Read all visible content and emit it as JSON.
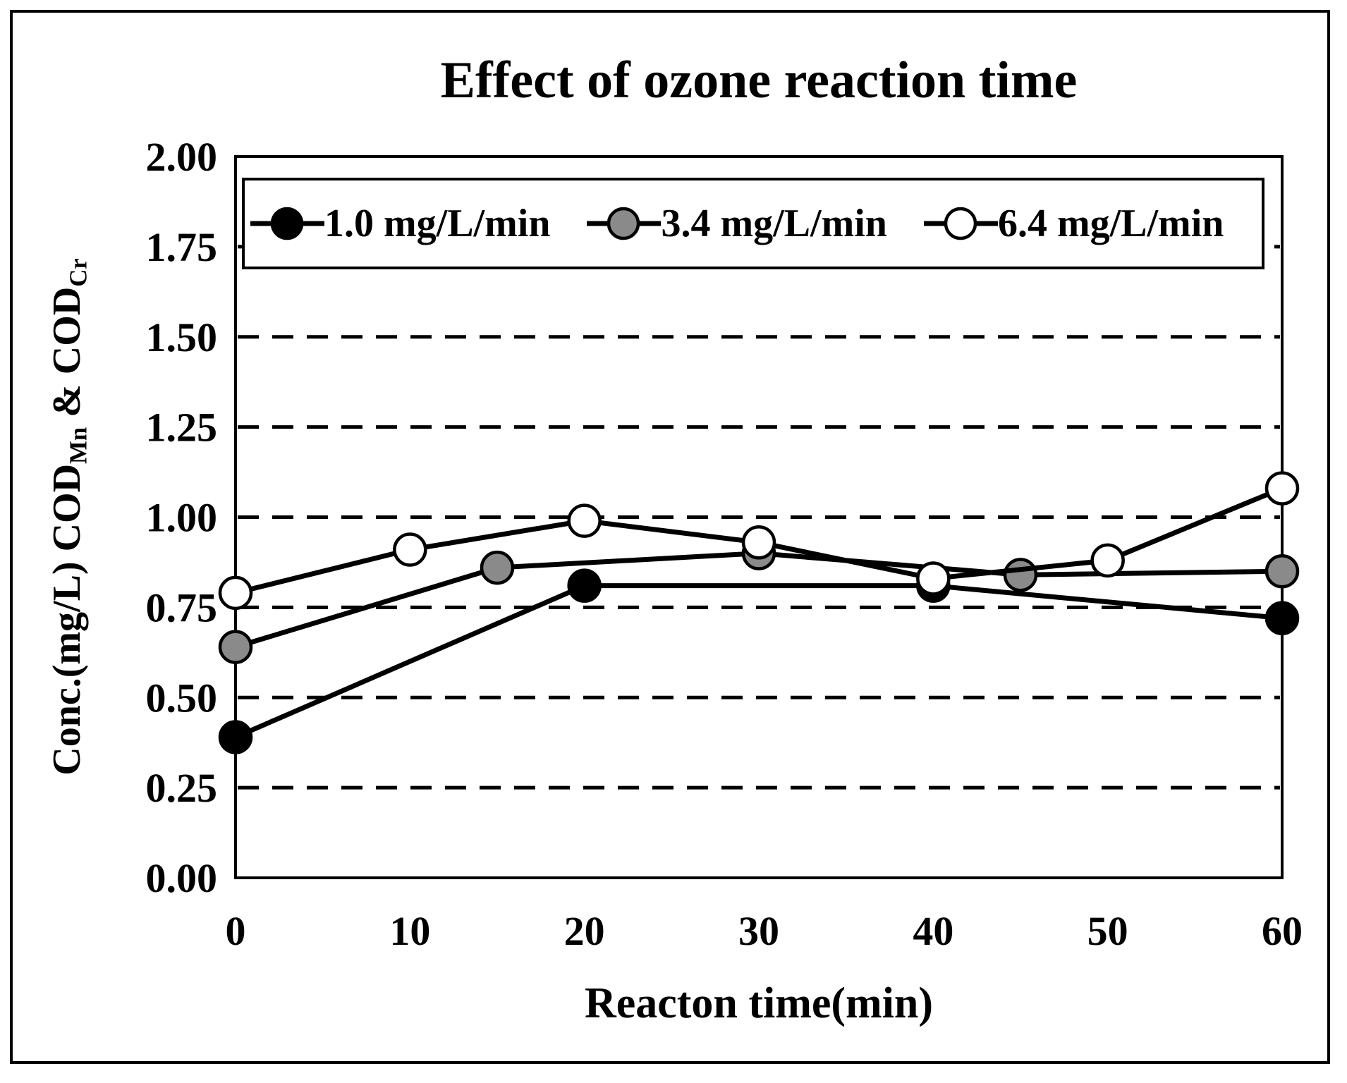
{
  "figure": {
    "title": "Effect of ozone reaction time"
  },
  "axes": {
    "xlabel": "Reacton time(min)",
    "ylabel": "Conc.(mg/L) COD_Mn & COD_Cr",
    "ylabel_parts": {
      "main1": "Conc.(mg/L) COD",
      "sub1": "Mn",
      "main2": " & COD",
      "sub2": "Cr"
    }
  },
  "colors": {
    "line": "#000000",
    "black_marker": "#000000",
    "gray_marker": "#8a8a8a",
    "white_marker": "#ffffff",
    "background": "#ffffff"
  },
  "chart_data": {
    "type": "line",
    "title": "Effect of ozone reaction time",
    "xlabel": "Reacton time(min)",
    "ylabel": "Conc.(mg/L) COD_Mn & COD_Cr",
    "xlim": [
      0,
      60
    ],
    "ylim": [
      0.0,
      2.0
    ],
    "grid": "horizontal-dashed",
    "legend_position": "top-inside",
    "y_gridlines": [
      0.25,
      0.5,
      0.75,
      1.0,
      1.25,
      1.5,
      1.75
    ],
    "y_ticks": [
      {
        "value": 2.0,
        "label": "2.00"
      },
      {
        "value": 1.75,
        "label": "1.75"
      },
      {
        "value": 1.5,
        "label": "1.50"
      },
      {
        "value": 1.25,
        "label": "1.25"
      },
      {
        "value": 1.0,
        "label": "1.00"
      },
      {
        "value": 0.75,
        "label": "0.75"
      },
      {
        "value": 0.5,
        "label": "0.50"
      },
      {
        "value": 0.25,
        "label": "0.25"
      },
      {
        "value": 0.0,
        "label": "0.00"
      }
    ],
    "x_ticks": [
      {
        "value": 0,
        "label": "0"
      },
      {
        "value": 10,
        "label": "10"
      },
      {
        "value": 20,
        "label": "20"
      },
      {
        "value": 30,
        "label": "30"
      },
      {
        "value": 40,
        "label": "40"
      },
      {
        "value": 50,
        "label": "50"
      },
      {
        "value": 60,
        "label": "60"
      }
    ],
    "series": [
      {
        "name": "1.0 mg/L/min",
        "marker": "filled-circle",
        "marker_fill": "#000000",
        "line_color": "#000000",
        "x": [
          0,
          20,
          40,
          60
        ],
        "y": [
          0.39,
          0.81,
          0.81,
          0.72
        ]
      },
      {
        "name": "3.4 mg/L/min",
        "marker": "filled-circle",
        "marker_fill": "#8a8a8a",
        "line_color": "#000000",
        "x": [
          0,
          15,
          30,
          45,
          60
        ],
        "y": [
          0.64,
          0.86,
          0.9,
          0.84,
          0.85
        ]
      },
      {
        "name": "6.4 mg/L/min",
        "marker": "open-circle",
        "marker_fill": "#ffffff",
        "line_color": "#000000",
        "x": [
          0,
          10,
          20,
          30,
          40,
          50,
          60
        ],
        "y": [
          0.79,
          0.91,
          0.99,
          0.93,
          0.83,
          0.88,
          1.08
        ]
      }
    ]
  }
}
